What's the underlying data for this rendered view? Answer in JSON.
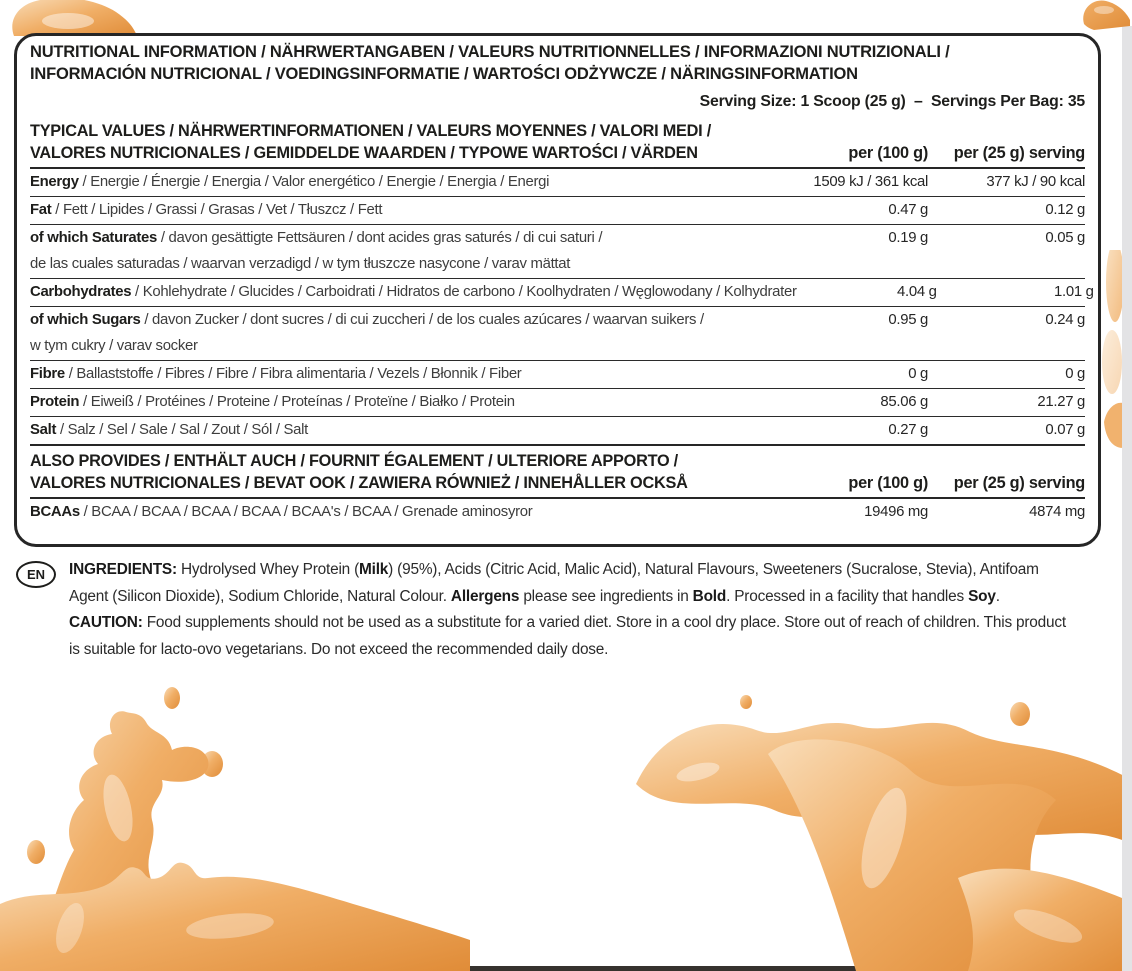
{
  "header": {
    "title_line1": "NUTRITIONAL INFORMATION / NÄHRWERTANGABEN / VALEURS NUTRITIONNELLES / INFORMAZIONI NUTRIZIONALI /",
    "title_line2": "INFORMACIÓN NUTRICIONAL / VOEDINGSINFORMATIE / WARTOŚCI ODŻYWCZE / NÄRINGSINFORMATION",
    "serving_info": "Serving Size: 1 Scoop (25 g)  –  Servings Per Bag: 35"
  },
  "table": {
    "typical": {
      "header_line1": "TYPICAL VALUES / NÄHRWERTINFORMATIONEN / VALEURS MOYENNES / VALORI MEDI /",
      "header_line2": "VALORES NUTRICIONALES / GEMIDDELDE WAARDEN / TYPOWE WARTOŚCI / VÄRDEN",
      "col_per_100g": "per (100 g)",
      "col_per_serving": "per (25 g) serving",
      "rows": [
        {
          "label_bold": "Energy",
          "label_rest": " / Energie / Énergie / Energia / Valor energético / Energie / Energia / Energi",
          "per_100g": "1509 kJ / 361 kcal",
          "per_serving": "377 kJ / 90 kcal"
        },
        {
          "label_bold": "Fat",
          "label_rest": " / Fett / Lipides / Grassi / Grasas / Vet / Tłuszcz / Fett",
          "per_100g": "0.47 g",
          "per_serving": "0.12 g"
        },
        {
          "label_bold": "of which Saturates",
          "label_rest": " / davon gesättigte Fettsäuren / dont acides gras saturés / di cui saturi /",
          "continuation": "de las cuales saturadas / waarvan verzadigd / w tym tłuszcze nasycone / varav mättat",
          "per_100g": "0.19 g",
          "per_serving": "0.05 g"
        },
        {
          "label_bold": "Carbohydrates",
          "label_rest": " / Kohlehydrate / Glucides / Carboidrati / Hidratos de carbono / Koolhydraten / Węglowodany / Kolhydrater",
          "per_100g": "4.04 g",
          "per_serving": "1.01 g"
        },
        {
          "label_bold": "of which Sugars",
          "label_rest": " / davon Zucker / dont sucres / di cui zuccheri / de los cuales azúcares / waarvan suikers /",
          "continuation": "w tym cukry / varav socker",
          "per_100g": "0.95 g",
          "per_serving": "0.24 g"
        },
        {
          "label_bold": "Fibre",
          "label_rest": " / Ballaststoffe / Fibres / Fibre / Fibra alimentaria / Vezels / Błonnik / Fiber",
          "per_100g": "0 g",
          "per_serving": "0 g"
        },
        {
          "label_bold": "Protein",
          "label_rest": " / Eiweiß / Protéines / Proteine / Proteínas / Proteïne / Białko / Protein",
          "per_100g": "85.06 g",
          "per_serving": "21.27 g"
        },
        {
          "label_bold": "Salt",
          "label_rest": " / Salz / Sel / Sale / Sal / Zout / Sól / Salt",
          "per_100g": "0.27 g",
          "per_serving": "0.07 g"
        }
      ]
    },
    "also_provides": {
      "header_line1": "ALSO PROVIDES / ENTHÄLT AUCH / FOURNIT ÉGALEMENT / ULTERIORE APPORTO /",
      "header_line2": "VALORES NUTRICIONALES / BEVAT OOK / ZAWIERA RÓWNIEŻ / INNEHÅLLER OCKSÅ",
      "col_per_100g": "per (100 g)",
      "col_per_serving": "per (25 g) serving",
      "rows": [
        {
          "label_bold": "BCAAs",
          "label_rest": " / BCAA / BCAA / BCAA / BCAA / BCAA's / BCAA / Grenade aminosyror",
          "per_100g": "19496 mg",
          "per_serving": "4874 mg"
        }
      ]
    }
  },
  "ingredients": {
    "language_badge": "EN",
    "paragraph_segments": [
      {
        "text": "INGREDIENTS:",
        "bold": true
      },
      {
        "text": " Hydrolysed Whey Protein (",
        "bold": false
      },
      {
        "text": "Milk",
        "bold": true
      },
      {
        "text": ") (95%), Acids (Citric Acid, Malic Acid), Natural Flavours, Sweeteners (Sucralose, Stevia), Antifoam Agent (Silicon Dioxide), Sodium Chloride, Natural Colour.  ",
        "bold": false
      },
      {
        "text": "Allergens",
        "bold": true
      },
      {
        "text": " please see ingredients in ",
        "bold": false
      },
      {
        "text": "Bold",
        "bold": true
      },
      {
        "text": ". Processed in a facility that handles ",
        "bold": false
      },
      {
        "text": "Soy",
        "bold": true
      },
      {
        "text": ".",
        "bold": false
      }
    ],
    "caution_segments": [
      {
        "text": "CAUTION:",
        "bold": true
      },
      {
        "text": " Food supplements should not be used as a substitute for a varied diet. Store in a cool dry place. Store out of reach of children. This product is suitable for lacto-ovo vegetarians. Do not exceed the recommended daily dose.",
        "bold": false
      }
    ]
  },
  "colors": {
    "juice_light": "#F9DDB9",
    "juice_mid": "#F0AE66",
    "juice_dark": "#E08C38",
    "text": "#1d1d1b"
  }
}
